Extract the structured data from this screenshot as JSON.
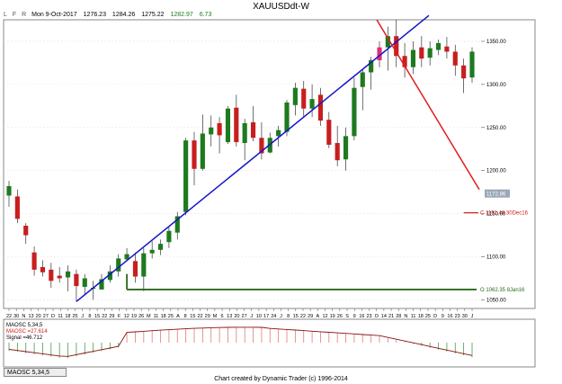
{
  "header": {
    "title": "XAUUSDdt-W",
    "flags": [
      "L",
      "F",
      "R"
    ],
    "date": "Mon 9-Oct-2017",
    "open": "1276.23",
    "high": "1284.26",
    "low": "1275.22",
    "close": "1282.97",
    "change": "6.73"
  },
  "footer": {
    "tab": "MAOSC 5,34,5",
    "credit": "Chart created by Dynamic Trader  (c) 1996-2014"
  },
  "oscillator": {
    "name": "MAOSC 5,34,5",
    "value_label": "MAOSC =27.614",
    "signal_label": "Signal =46.712"
  },
  "annotations": {
    "resistance_label": "C 1151.46 30Dec16",
    "support_label": "O 1062.35 8Jan16",
    "last_price": "1172.86"
  },
  "colors": {
    "up": "#1e7a1e",
    "down": "#c81e1e",
    "highlight": "#e0307a",
    "trendline_up": "#1414c8",
    "trendline_down": "#e01e1e",
    "support": "#2a6a1a",
    "osc_line": "#8a1010"
  },
  "chart_data": [
    {
      "type": "candlestick",
      "title": "XAUUSDdt-W",
      "x_ticks": [
        "22",
        "30",
        "N",
        "13",
        "20",
        "27",
        "D",
        "11",
        "18",
        "25",
        "J",
        "8",
        "15",
        "22",
        "29",
        "F",
        "12",
        "19",
        "26",
        "M",
        "11",
        "18",
        "25",
        "A",
        "8",
        "15",
        "22",
        "29",
        "M",
        "6",
        "13",
        "20",
        "27",
        "J",
        "10",
        "17",
        "24",
        "J",
        "8",
        "15",
        "22",
        "29",
        "A",
        "12",
        "19",
        "26",
        "S",
        "9",
        "16",
        "23",
        "O",
        "14",
        "21",
        "28",
        "N",
        "11",
        "18",
        "25",
        "D",
        "9",
        "16",
        "23",
        "30",
        "J"
      ],
      "y_ticks": [
        1050,
        1100,
        1150,
        1200,
        1250,
        1300,
        1350
      ],
      "ylim": [
        1040,
        1375
      ],
      "grid": true,
      "candles": [
        {
          "o": 1171,
          "h": 1188,
          "l": 1158,
          "c": 1182
        },
        {
          "o": 1170,
          "h": 1178,
          "l": 1139,
          "c": 1144
        },
        {
          "o": 1136,
          "h": 1139,
          "l": 1115,
          "c": 1125
        },
        {
          "o": 1105,
          "h": 1112,
          "l": 1078,
          "c": 1085
        },
        {
          "o": 1088,
          "h": 1096,
          "l": 1077,
          "c": 1082
        },
        {
          "o": 1085,
          "h": 1093,
          "l": 1064,
          "c": 1072
        },
        {
          "o": 1078,
          "h": 1088,
          "l": 1070,
          "c": 1075
        },
        {
          "o": 1076,
          "h": 1090,
          "l": 1060,
          "c": 1083
        },
        {
          "o": 1080,
          "h": 1085,
          "l": 1048,
          "c": 1066
        },
        {
          "o": 1065,
          "h": 1080,
          "l": 1056,
          "c": 1075
        },
        {
          "o": 1064,
          "h": 1072,
          "l": 1050,
          "c": 1064
        },
        {
          "o": 1062,
          "h": 1080,
          "l": 1062,
          "c": 1074
        },
        {
          "o": 1073,
          "h": 1090,
          "l": 1070,
          "c": 1083
        },
        {
          "o": 1083,
          "h": 1103,
          "l": 1077,
          "c": 1098
        },
        {
          "o": 1097,
          "h": 1110,
          "l": 1096,
          "c": 1103
        },
        {
          "o": 1095,
          "h": 1105,
          "l": 1070,
          "c": 1077
        },
        {
          "o": 1077,
          "h": 1110,
          "l": 1060,
          "c": 1104
        },
        {
          "o": 1104,
          "h": 1118,
          "l": 1098,
          "c": 1108
        },
        {
          "o": 1108,
          "h": 1120,
          "l": 1102,
          "c": 1115
        },
        {
          "o": 1117,
          "h": 1134,
          "l": 1110,
          "c": 1130
        },
        {
          "o": 1128,
          "h": 1152,
          "l": 1120,
          "c": 1147
        },
        {
          "o": 1152,
          "h": 1238,
          "l": 1148,
          "c": 1235
        },
        {
          "o": 1235,
          "h": 1245,
          "l": 1183,
          "c": 1202
        },
        {
          "o": 1202,
          "h": 1265,
          "l": 1200,
          "c": 1243
        },
        {
          "o": 1242,
          "h": 1264,
          "l": 1228,
          "c": 1250
        },
        {
          "o": 1255,
          "h": 1262,
          "l": 1220,
          "c": 1241
        },
        {
          "o": 1233,
          "h": 1275,
          "l": 1231,
          "c": 1272
        },
        {
          "o": 1273,
          "h": 1288,
          "l": 1228,
          "c": 1233
        },
        {
          "o": 1232,
          "h": 1260,
          "l": 1212,
          "c": 1255
        },
        {
          "o": 1256,
          "h": 1275,
          "l": 1234,
          "c": 1238
        },
        {
          "o": 1238,
          "h": 1256,
          "l": 1213,
          "c": 1220
        },
        {
          "o": 1221,
          "h": 1244,
          "l": 1220,
          "c": 1238
        },
        {
          "o": 1240,
          "h": 1252,
          "l": 1228,
          "c": 1247
        },
        {
          "o": 1245,
          "h": 1282,
          "l": 1240,
          "c": 1279
        },
        {
          "o": 1276,
          "h": 1302,
          "l": 1264,
          "c": 1296
        },
        {
          "o": 1295,
          "h": 1304,
          "l": 1262,
          "c": 1272
        },
        {
          "o": 1272,
          "h": 1300,
          "l": 1262,
          "c": 1283
        },
        {
          "o": 1288,
          "h": 1296,
          "l": 1252,
          "c": 1258
        },
        {
          "o": 1259,
          "h": 1268,
          "l": 1226,
          "c": 1230
        },
        {
          "o": 1232,
          "h": 1252,
          "l": 1205,
          "c": 1212
        },
        {
          "o": 1213,
          "h": 1250,
          "l": 1200,
          "c": 1240
        },
        {
          "o": 1240,
          "h": 1308,
          "l": 1235,
          "c": 1296
        },
        {
          "o": 1297,
          "h": 1317,
          "l": 1270,
          "c": 1314
        },
        {
          "o": 1314,
          "h": 1332,
          "l": 1294,
          "c": 1328
        },
        {
          "o": 1328,
          "h": 1350,
          "l": 1320,
          "c": 1343
        },
        {
          "o": 1343,
          "h": 1367,
          "l": 1316,
          "c": 1356
        },
        {
          "o": 1356,
          "h": 1375,
          "l": 1320,
          "c": 1333
        },
        {
          "o": 1333,
          "h": 1348,
          "l": 1308,
          "c": 1320
        },
        {
          "o": 1320,
          "h": 1350,
          "l": 1312,
          "c": 1340
        },
        {
          "o": 1343,
          "h": 1356,
          "l": 1320,
          "c": 1330
        },
        {
          "o": 1331,
          "h": 1350,
          "l": 1322,
          "c": 1342
        },
        {
          "o": 1340,
          "h": 1352,
          "l": 1334,
          "c": 1348
        },
        {
          "o": 1344,
          "h": 1355,
          "l": 1330,
          "c": 1338
        },
        {
          "o": 1338,
          "h": 1346,
          "l": 1310,
          "c": 1322
        },
        {
          "o": 1322,
          "h": 1330,
          "l": 1290,
          "c": 1307
        },
        {
          "o": 1308,
          "h": 1343,
          "l": 1302,
          "c": 1338
        }
      ]
    },
    {
      "type": "bar",
      "title": "MAOSC 5,34,5",
      "value": 27.614,
      "signal": 46.712
    }
  ]
}
